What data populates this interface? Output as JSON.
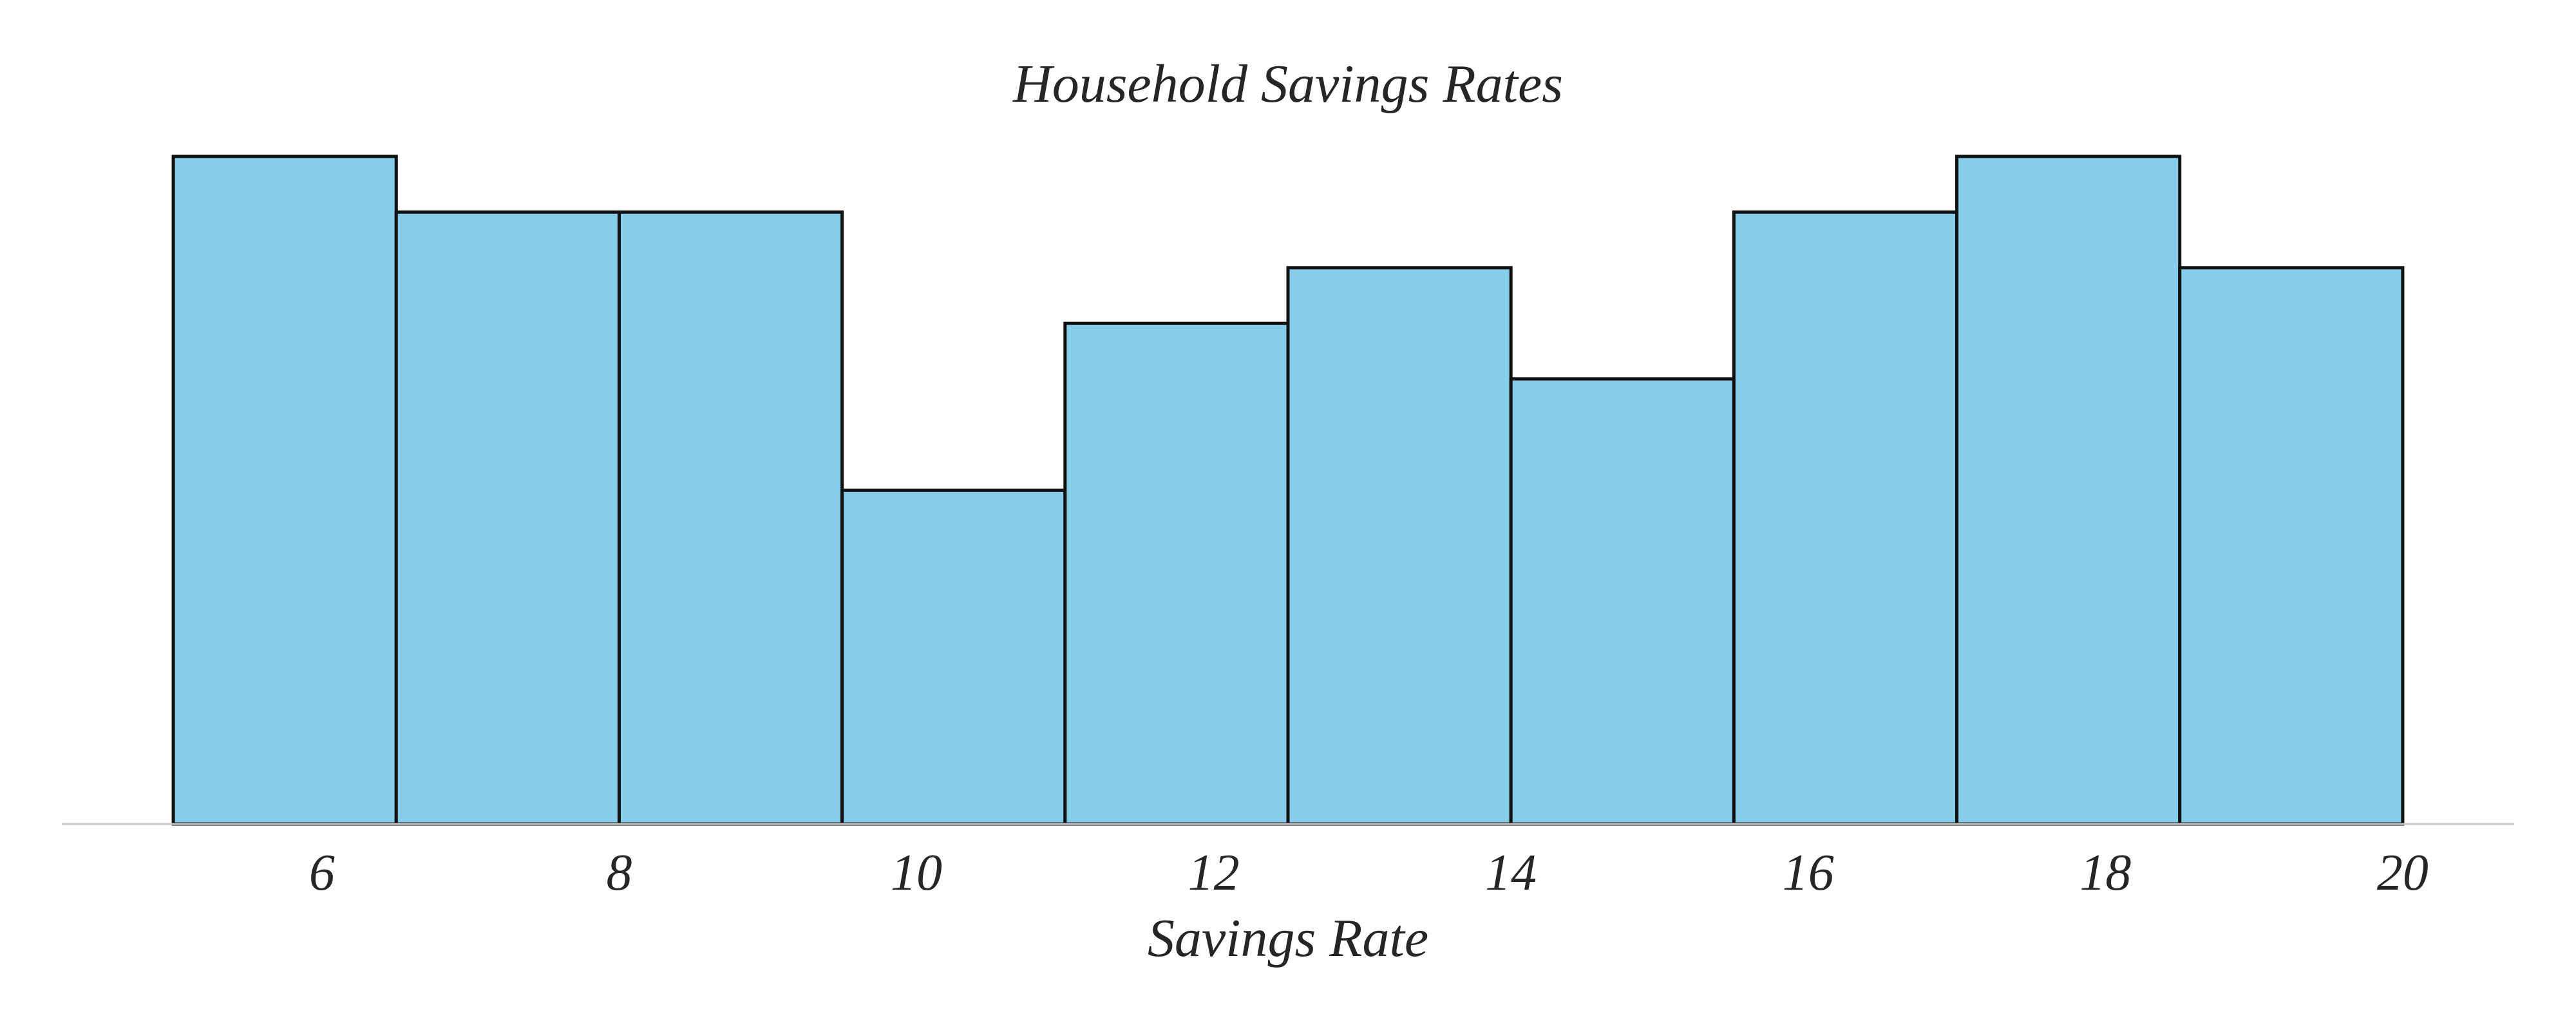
{
  "chart_data": {
    "type": "histogram",
    "title": "Household Savings Rates",
    "xlabel": "Savings Rate",
    "ylabel": "",
    "bin_edges": [
      5.0,
      6.5,
      8.0,
      9.5,
      11.0,
      12.5,
      14.0,
      15.5,
      17.0,
      18.5,
      20.0
    ],
    "counts": [
      12,
      11,
      11,
      6,
      9,
      10,
      8,
      11,
      12,
      10
    ],
    "xlim": [
      4.25,
      20.75
    ],
    "ylim": [
      0,
      12
    ],
    "xticks": [
      6,
      8,
      10,
      12,
      14,
      16,
      18,
      20
    ],
    "xtick_labels": [
      "6",
      "8",
      "10",
      "12",
      "14",
      "16",
      "18",
      "20"
    ],
    "grid": false,
    "colors": {
      "bar_fill": "#87CEEB",
      "bar_edge": "#111111",
      "axis_line": "#c8c8c8",
      "text": "#262626"
    }
  }
}
